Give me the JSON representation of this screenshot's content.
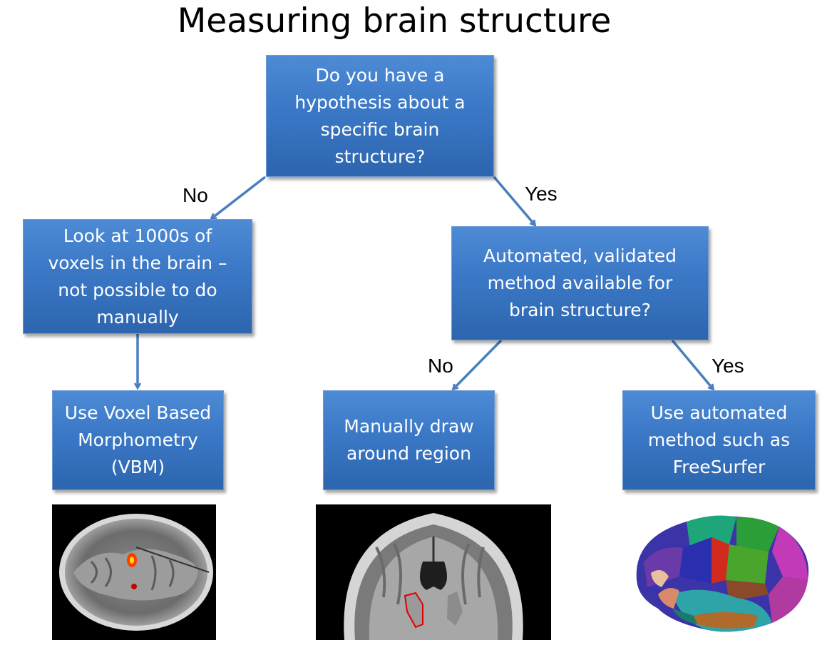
{
  "title": "Measuring brain structure",
  "nodes": {
    "hypothesis": "Do you have a\nhypothesis about a\nspecific brain\nstructure?",
    "look_voxels": "Look at 1000s of\nvoxels in the brain –\nnot possible to do\nmanually",
    "automated_available": "Automated,  validated\nmethod available for\nbrain structure?",
    "use_vbm": "Use Voxel Based\nMorphometry\n(VBM)",
    "manually_draw": "Manually draw\naround region",
    "use_automated": "Use automated\nmethod such as\nFreeSurfer"
  },
  "edge_labels": {
    "no_1": "No",
    "yes_1": "Yes",
    "no_2": "No",
    "yes_2": "Yes"
  },
  "colors": {
    "box_top": "#4d8bd6",
    "box_bottom": "#2d65ae",
    "arrow": "#4a7ebf"
  }
}
